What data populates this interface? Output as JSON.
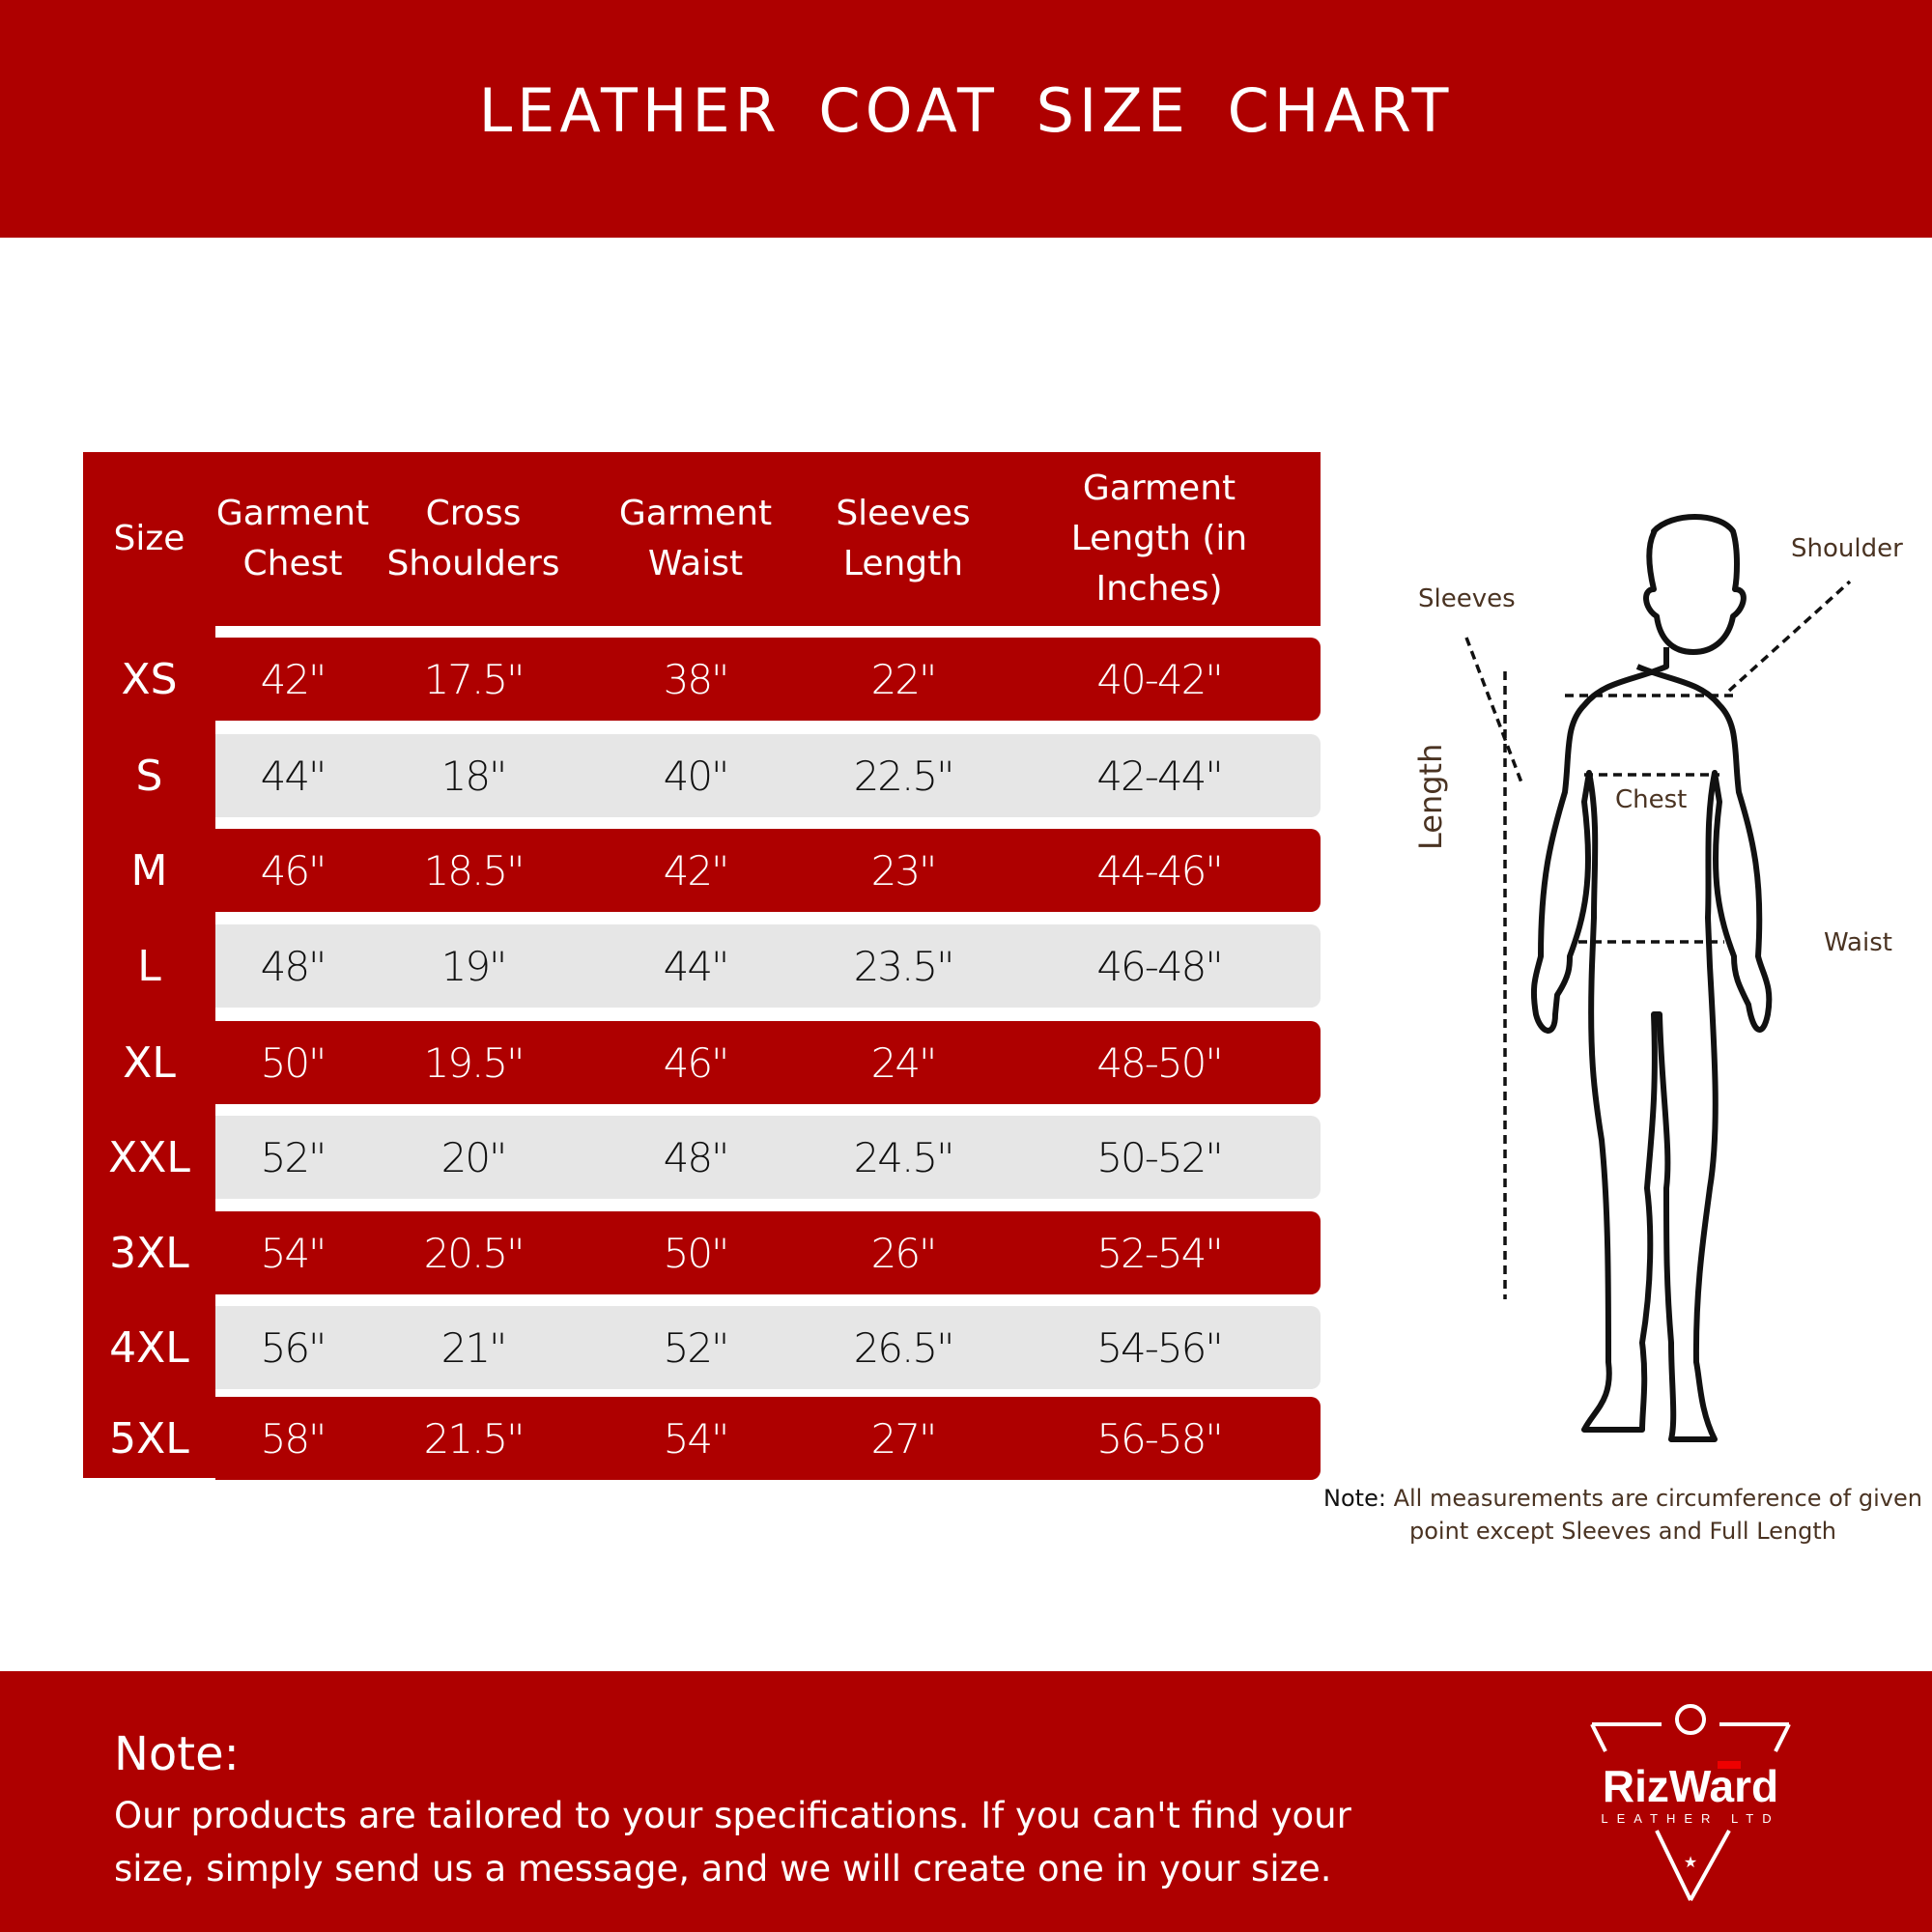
{
  "header": {
    "title": "LEATHER COAT SIZE CHART"
  },
  "table": {
    "columns": [
      {
        "line1": "Size",
        "line2": ""
      },
      {
        "line1": "Garment",
        "line2": "Chest"
      },
      {
        "line1": "Cross",
        "line2": "Shoulders"
      },
      {
        "line1": "Garment",
        "line2": "Waist"
      },
      {
        "line1": "Sleeves",
        "line2": "Length"
      },
      {
        "line1": "Garment",
        "line2": "Length (in Inches)"
      }
    ],
    "rows": [
      {
        "size": "XS",
        "chest": "42\"",
        "shoulders": "17.5\"",
        "waist": "38\"",
        "sleeves": "22\"",
        "length": "40-42\""
      },
      {
        "size": "S",
        "chest": "44\"",
        "shoulders": "18\"",
        "waist": "40\"",
        "sleeves": "22.5\"",
        "length": "42-44\""
      },
      {
        "size": "M",
        "chest": "46\"",
        "shoulders": "18.5\"",
        "waist": "42\"",
        "sleeves": "23\"",
        "length": "44-46\""
      },
      {
        "size": "L",
        "chest": "48\"",
        "shoulders": "19\"",
        "waist": "44\"",
        "sleeves": "23.5\"",
        "length": "46-48\""
      },
      {
        "size": "XL",
        "chest": "50\"",
        "shoulders": "19.5\"",
        "waist": "46\"",
        "sleeves": "24\"",
        "length": "48-50\""
      },
      {
        "size": "XXL",
        "chest": "52\"",
        "shoulders": "20\"",
        "waist": "48\"",
        "sleeves": "24.5\"",
        "length": "50-52\""
      },
      {
        "size": "3XL",
        "chest": "54\"",
        "shoulders": "20.5\"",
        "waist": "50\"",
        "sleeves": "26\"",
        "length": "52-54\""
      },
      {
        "size": "4XL",
        "chest": "56\"",
        "shoulders": "21\"",
        "waist": "52\"",
        "sleeves": "26.5\"",
        "length": "54-56\""
      },
      {
        "size": "5XL",
        "chest": "58\"",
        "shoulders": "21.5\"",
        "waist": "54\"",
        "sleeves": "27\"",
        "length": "56-58\""
      }
    ]
  },
  "figure": {
    "labels": {
      "shoulder": "Shoulder",
      "sleeves": "Sleeves",
      "chest": "Chest",
      "length": "Length",
      "waist": "Waist"
    }
  },
  "figure_note": {
    "prefix": "Note:",
    "text": "All measurements are circumference of given point except Sleeves and Full Length"
  },
  "footer": {
    "heading": "Note:",
    "text": "Our products are tailored to your specifications. If you can't find your size, simply send us a message, and we will create one in your size."
  },
  "logo": {
    "name": "RizWard",
    "sub": "LEATHER LTD"
  },
  "colors": {
    "brand_red": "#ae0000",
    "row_grey": "#e6e6e6"
  }
}
